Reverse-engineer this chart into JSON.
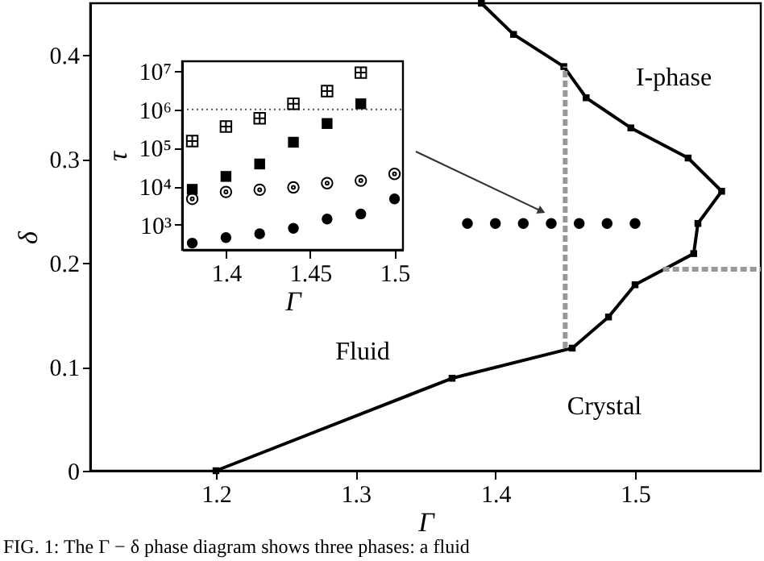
{
  "chart_data": [
    {
      "type": "line",
      "xlabel": "Γ",
      "ylabel": "δ",
      "xlim": [
        1.11,
        1.59
      ],
      "ylim": [
        0,
        0.45
      ],
      "xticks": [
        1.2,
        1.3,
        1.4,
        1.5
      ],
      "yticks": [
        0,
        0.1,
        0.2,
        0.3,
        0.4
      ],
      "grid": false,
      "series": [
        {
          "type": "line",
          "color": "#000000",
          "marker": "square",
          "line_style": "solid",
          "x": [
            1.2,
            1.369,
            1.455,
            1.481,
            1.5,
            1.542,
            1.545,
            1.562,
            1.538,
            1.497,
            1.465,
            1.449,
            1.413,
            1.39
          ],
          "values": [
            0,
            0.089,
            0.118,
            0.148,
            0.179,
            0.209,
            0.238,
            0.269,
            0.301,
            0.33,
            0.359,
            0.389,
            0.42,
            0.45
          ]
        },
        {
          "type": "line",
          "color": "#999999",
          "marker": "none",
          "line_style": "dashed",
          "x": [
            1.45,
            1.45
          ],
          "values": [
            0.118,
            0.389
          ]
        },
        {
          "type": "line",
          "color": "#999999",
          "marker": "none",
          "line_style": "dashed",
          "x": [
            1.52,
            1.59
          ],
          "values": [
            0.194,
            0.194
          ]
        },
        {
          "type": "scatter",
          "color": "#000000",
          "marker": "circle",
          "x": [
            1.38,
            1.4,
            1.42,
            1.44,
            1.46,
            1.48,
            1.5
          ],
          "values": [
            0.238,
            0.238,
            0.238,
            0.238,
            0.238,
            0.238,
            0.238
          ]
        }
      ],
      "annotations": [
        "I-phase",
        "Fluid",
        "Crystal",
        "FIG. 1: The Γ − δ phase diagram shows three phases: a fluid"
      ]
    },
    {
      "type": "scatter",
      "xlabel": "Γ",
      "ylabel": "τ",
      "xlim": [
        1.374,
        1.505
      ],
      "ylim": [
        220,
        18000000
      ],
      "log": "y",
      "xticks": [
        1.4,
        1.45,
        1.5
      ],
      "yticks": [
        {
          "value": 1000,
          "label": "10³"
        },
        {
          "value": 10000,
          "label": "10⁴"
        },
        {
          "value": 100000,
          "label": "10⁵"
        },
        {
          "value": 1000000,
          "label": "10⁶"
        },
        {
          "value": 10000000,
          "label": "10⁷"
        }
      ],
      "grid": false,
      "ref_lines": [
        {
          "axis": "y",
          "value": 1000000,
          "color": "#555555",
          "line_style": "dotted"
        }
      ],
      "series": [
        {
          "color": "#000000",
          "marker": "cross",
          "x": [
            1.38,
            1.4,
            1.42,
            1.44,
            1.46,
            1.48
          ],
          "values": [
            150000,
            360000,
            590000,
            1400000,
            3000000,
            9100000
          ]
        },
        {
          "color": "#000000",
          "marker": "square",
          "x": [
            1.38,
            1.4,
            1.42,
            1.44,
            1.46,
            1.48
          ],
          "values": [
            8300,
            18000,
            38000,
            140000,
            430000,
            1400000
          ]
        },
        {
          "color": "#000000",
          "marker": "circle",
          "x": [
            1.38,
            1.4,
            1.42,
            1.44,
            1.46,
            1.48,
            1.5
          ],
          "values": [
            4700,
            7100,
            8100,
            9300,
            12000,
            14000,
            21000
          ]
        },
        {
          "color": "#000000",
          "marker": "circle",
          "x": [
            1.38,
            1.4,
            1.42,
            1.44,
            1.46,
            1.48,
            1.5
          ],
          "values": [
            330,
            460,
            580,
            800,
            1400,
            1900,
            4700
          ]
        }
      ]
    }
  ]
}
